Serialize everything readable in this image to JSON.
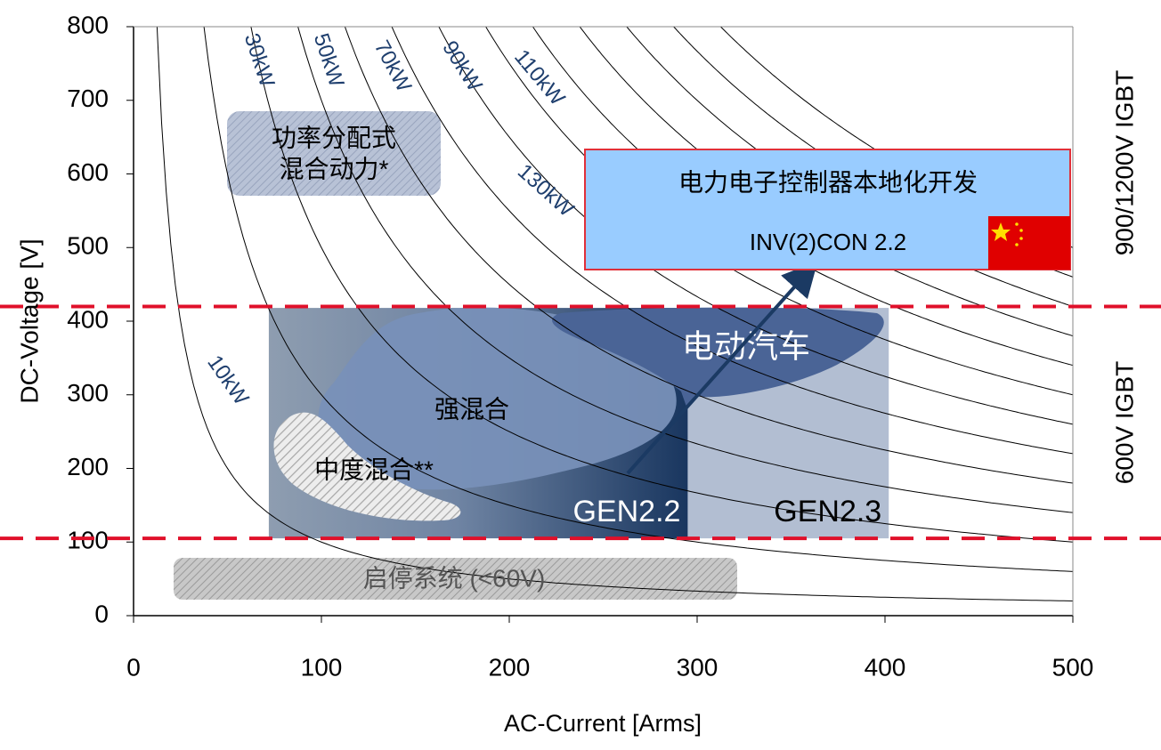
{
  "chart_data": {
    "type": "line",
    "x_label": "AC-Current [Arms]",
    "y_label": "DC-Voltage [V]",
    "xlim": [
      0,
      500
    ],
    "ylim": [
      0,
      800
    ],
    "xticks": [
      0,
      100,
      200,
      300,
      400,
      500
    ],
    "yticks": [
      0,
      100,
      200,
      300,
      400,
      500,
      600,
      700,
      800
    ],
    "curve_color": "#000000",
    "power_curves": {
      "values": [
        10,
        30,
        50,
        70,
        90,
        110,
        130,
        150,
        170,
        190,
        210,
        230,
        250
      ],
      "labels": [
        "10kW",
        "30kW",
        "50kW",
        "70kW",
        "90kW",
        "110kW",
        "130kW",
        null,
        null,
        null,
        null,
        null,
        null
      ]
    },
    "reference_lines": {
      "values": [
        420,
        105
      ],
      "color": "#e0102a"
    },
    "regions": [
      {
        "name": "GEN2.2",
        "x": [
          72,
          295
        ],
        "y": [
          105,
          418
        ]
      },
      {
        "name": "GEN2.3",
        "x": [
          295,
          402
        ],
        "y": [
          105,
          418
        ]
      }
    ],
    "annotations": {
      "hybrid_split": [
        "功率分配式",
        "混合动力*"
      ],
      "strong_hybrid": "强混合",
      "mild_hybrid": "中度混合**",
      "ev": "电动汽车",
      "start_stop": "启停系统 (<60V)",
      "box_title": "电力电子控制器本地化开发",
      "box_subtitle": "INV(2)CON 2.2",
      "igbt_high": "900/1200V IGBT",
      "igbt_low": "600V IGBT"
    }
  }
}
